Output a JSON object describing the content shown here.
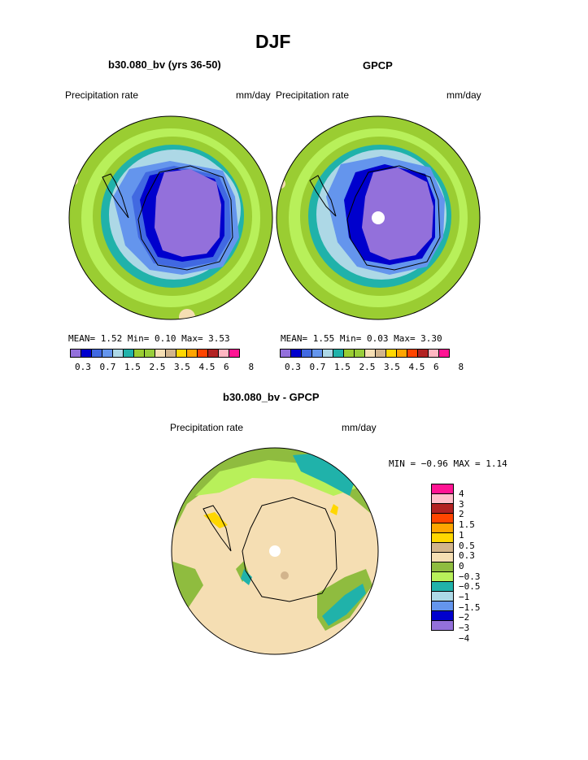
{
  "page_title": "DJF",
  "left_panel": {
    "title": "b30.080_bv (yrs 36-50)",
    "var_label": "Precipitation rate",
    "units": "mm/day",
    "stats": "MEAN=   1.52  Min=   0.10  Max=   3.53",
    "tick_labels": [
      "0.3",
      "0.7",
      "1.5",
      "2.5",
      "3.5",
      "4.5",
      "6",
      "8"
    ]
  },
  "right_panel": {
    "title": "GPCP",
    "var_label": "Precipitation rate",
    "units": "mm/day",
    "stats": "MEAN=   1.55  Min=   0.03  Max=   3.30",
    "tick_labels": [
      "0.3",
      "0.7",
      "1.5",
      "2.5",
      "3.5",
      "4.5",
      "6",
      "8"
    ]
  },
  "diff_panel": {
    "title": "b30.080_bv - GPCP",
    "var_label": "Precipitation rate",
    "units": "mm/day",
    "stats": "MIN =  −0.96  MAX =   1.14",
    "tick_labels": [
      "4",
      "3",
      "2",
      "1.5",
      "1",
      "0.5",
      "0.3",
      "0",
      "−0.3",
      "−0.5",
      "−1",
      "−1.5",
      "−2",
      "−3",
      "−4"
    ]
  },
  "colors": {
    "precip_scale": [
      "#9370db",
      "#0000cd",
      "#4169e1",
      "#6495ed",
      "#add8e6",
      "#20b2aa",
      "#9acd32",
      "#98cd3a",
      "#f5deb3",
      "#d2b48c",
      "#ffd700",
      "#ffa500",
      "#ff4500",
      "#b22222",
      "#ffb6c1",
      "#ff1493"
    ],
    "diff_scale": [
      "#ff1493",
      "#ffc0cb",
      "#b22222",
      "#ff4500",
      "#ffa500",
      "#ffd700",
      "#d2b48c",
      "#f5deb3",
      "#8fbc3f",
      "#b8f05a",
      "#20b2aa",
      "#add8e6",
      "#6495ed",
      "#0000cd",
      "#9370db"
    ]
  }
}
